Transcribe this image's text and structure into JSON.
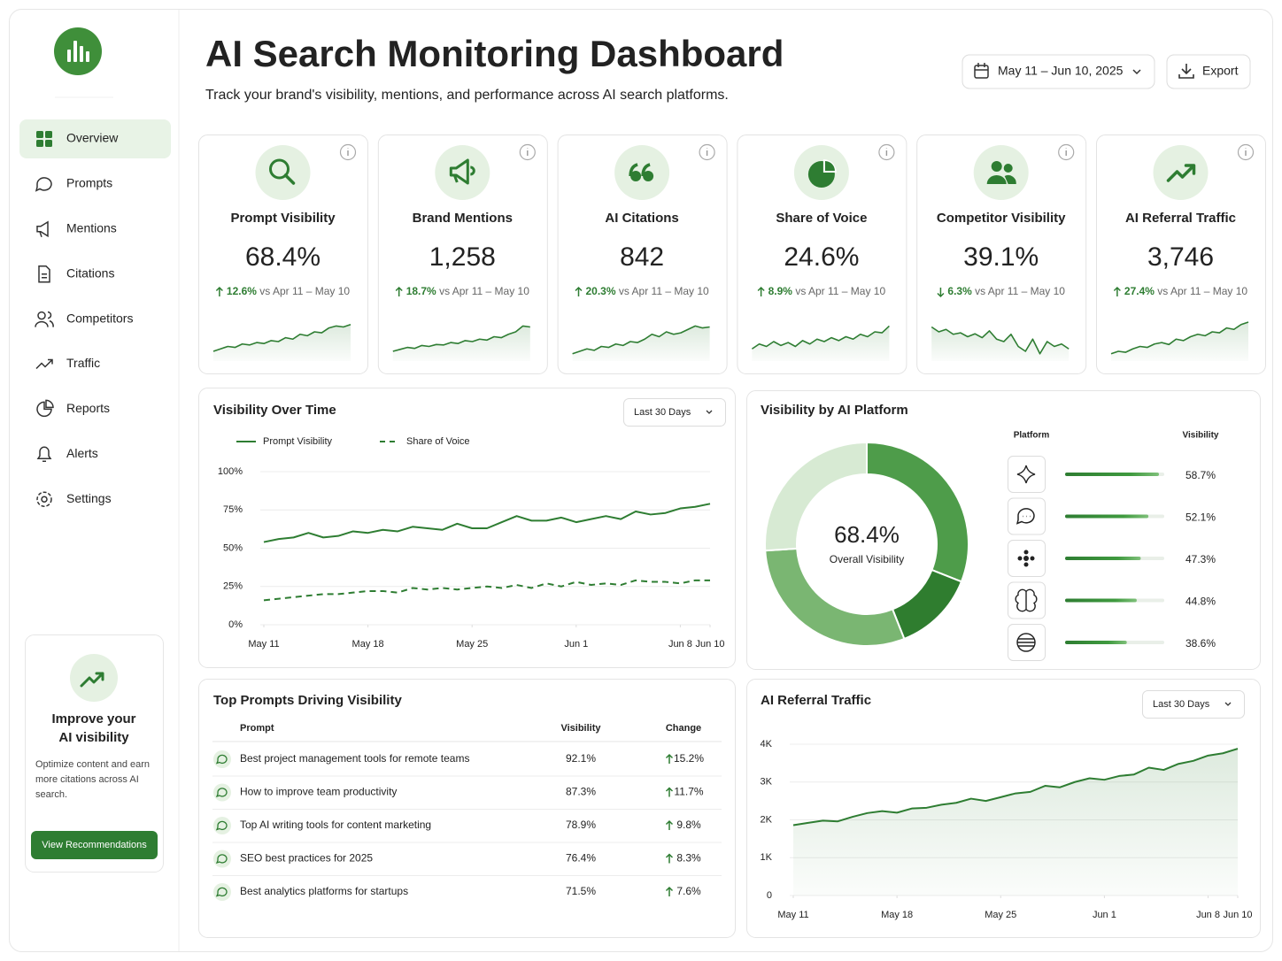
{
  "sidebar": {
    "nav": [
      "Overview",
      "Prompts",
      "Mentions",
      "Citations",
      "Competitors",
      "Traffic",
      "Reports",
      "Alerts",
      "Settings"
    ],
    "active": 0,
    "promo": {
      "title": "Improve your AI visibility",
      "text": "Optimize content and earn more citations across AI search.",
      "button": "View Recommendations"
    }
  },
  "header": {
    "title": "AI Search Monitoring Dashboard",
    "subtitle": "Track your brand's visibility, mentions, and performance across AI search platforms.",
    "date_range": "May 11 – Jun 10, 2025",
    "export": "Export"
  },
  "kpis": [
    {
      "label": "Prompt Visibility",
      "value": "68.4%",
      "change": "12.6%",
      "direction": "up",
      "comparison": "vs Apr 11 – May 10",
      "ylim": [
        0,
        100
      ],
      "sparkline": [
        20,
        25,
        30,
        28,
        35,
        33,
        38,
        36,
        42,
        40,
        48,
        45,
        55,
        52,
        60,
        58,
        68,
        72,
        70,
        75
      ]
    },
    {
      "label": "Brand Mentions",
      "value": "1,258",
      "change": "18.7%",
      "direction": "up",
      "comparison": "vs Apr 11 – May 10",
      "ylim": [
        0,
        100
      ],
      "sparkline": [
        20,
        24,
        28,
        26,
        32,
        30,
        34,
        33,
        38,
        36,
        42,
        40,
        45,
        43,
        50,
        48,
        55,
        60,
        72,
        70
      ]
    },
    {
      "label": "AI Citations",
      "value": "842",
      "change": "20.3%",
      "direction": "up",
      "comparison": "vs Apr 11 – May 10",
      "ylim": [
        0,
        100
      ],
      "sparkline": [
        15,
        20,
        25,
        22,
        30,
        28,
        35,
        32,
        40,
        38,
        45,
        55,
        50,
        60,
        55,
        58,
        65,
        72,
        68,
        70
      ]
    },
    {
      "label": "Share of Voice",
      "value": "24.6%",
      "change": "8.9%",
      "direction": "up",
      "comparison": "vs Apr 11 – May 10",
      "ylim": [
        0,
        100
      ],
      "sparkline": [
        25,
        35,
        30,
        40,
        32,
        38,
        30,
        42,
        35,
        45,
        40,
        48,
        42,
        50,
        45,
        55,
        50,
        60,
        58,
        72
      ]
    },
    {
      "label": "Competitor Visibility",
      "value": "39.1%",
      "change": "6.3%",
      "direction": "down",
      "comparison": "vs Apr 11 – May 10",
      "ylim": [
        0,
        100
      ],
      "sparkline": [
        70,
        60,
        65,
        55,
        58,
        50,
        56,
        48,
        62,
        45,
        40,
        55,
        30,
        20,
        45,
        15,
        40,
        30,
        35,
        25
      ]
    },
    {
      "label": "AI Referral Traffic",
      "value": "3,746",
      "change": "27.4%",
      "direction": "up",
      "comparison": "vs Apr 11 – May 10",
      "ylim": [
        0,
        100
      ],
      "sparkline": [
        15,
        20,
        18,
        25,
        30,
        28,
        35,
        38,
        34,
        45,
        42,
        50,
        55,
        52,
        60,
        58,
        68,
        65,
        75,
        80
      ]
    }
  ],
  "visibility_over_time": {
    "type": "line",
    "title": "Visibility Over Time",
    "range": "Last 30 Days",
    "series": [
      {
        "name": "Prompt Visibility",
        "color": "#2e7d32",
        "dash": false,
        "values": [
          54,
          56,
          57,
          60,
          57,
          58,
          61,
          60,
          62,
          61,
          64,
          63,
          62,
          66,
          63,
          63,
          67,
          71,
          68,
          68,
          70,
          67,
          69,
          71,
          69,
          74,
          72,
          73,
          76,
          77,
          79
        ]
      },
      {
        "name": "Share of Voice",
        "color": "#2e7d32",
        "dash": true,
        "values": [
          16,
          17,
          18,
          19,
          20,
          20,
          21,
          22,
          22,
          21,
          24,
          23,
          24,
          23,
          24,
          25,
          24,
          26,
          24,
          27,
          25,
          28,
          26,
          27,
          26,
          29,
          28,
          28,
          27,
          29,
          29
        ]
      }
    ],
    "ylim": [
      0,
      100
    ],
    "yticks": [
      {
        "value": 0,
        "label": "0%"
      },
      {
        "value": 25,
        "label": "25%"
      },
      {
        "value": 50,
        "label": "50%"
      },
      {
        "value": 75,
        "label": "75%"
      },
      {
        "value": 100,
        "label": "100%"
      }
    ],
    "xlim": [
      0,
      30
    ],
    "xticks": [
      {
        "value": 0,
        "label": "May 11"
      },
      {
        "value": 7,
        "label": "May 18"
      },
      {
        "value": 14,
        "label": "May 25"
      },
      {
        "value": 21,
        "label": "Jun 1"
      },
      {
        "value": 28,
        "label": "Jun 8"
      },
      {
        "value": 30,
        "label": "Jun 10"
      }
    ],
    "grid": true
  },
  "platforms": {
    "title": "Visibility by AI Platform",
    "donut": {
      "type": "pie",
      "center_value": "68.4%",
      "center_label": "Overall Visibility",
      "values": [
        31,
        13,
        30,
        26
      ],
      "colors": [
        "#4e9c4a",
        "#2f7d2f",
        "#7ab672",
        "#d7ead3"
      ]
    },
    "table": {
      "headers": [
        "Platform",
        "Visibility"
      ],
      "values": [
        58.7,
        52.1,
        47.3,
        44.8,
        38.6
      ],
      "value_labels": [
        "58.7%",
        "52.1%",
        "47.3%",
        "44.8%",
        "38.6%"
      ],
      "xlim": [
        0,
        62
      ],
      "color": "#2e7d32"
    }
  },
  "top_prompts": {
    "title": "Top Prompts Driving Visibility",
    "headers": [
      "Prompt",
      "Visibility",
      "Change"
    ],
    "rows": [
      [
        "Best project management tools for remote teams",
        "92.1%",
        "15.2%"
      ],
      [
        "How to improve team productivity",
        "87.3%",
        "11.7%"
      ],
      [
        "Top AI writing tools for content marketing",
        "78.9%",
        "9.8%"
      ],
      [
        "SEO best practices for 2025",
        "76.4%",
        "8.3%"
      ],
      [
        "Best analytics platforms for startups",
        "71.5%",
        "7.6%"
      ]
    ]
  },
  "referral_traffic": {
    "type": "line",
    "title": "AI Referral Traffic",
    "range": "Last 30 Days",
    "color": "#2e7d32",
    "area": true,
    "values": [
      1860,
      1920,
      1980,
      1960,
      2080,
      2180,
      2230,
      2190,
      2300,
      2320,
      2400,
      2450,
      2560,
      2500,
      2600,
      2700,
      2740,
      2900,
      2860,
      3000,
      3100,
      3060,
      3160,
      3200,
      3380,
      3320,
      3480,
      3560,
      3700,
      3760,
      3880
    ],
    "ylim": [
      0,
      4000
    ],
    "yticks": [
      0,
      {
        "value": 1000,
        "label": "1K"
      },
      {
        "value": 2000,
        "label": "2K"
      },
      {
        "value": 3000,
        "label": "3K"
      },
      {
        "value": 4000,
        "label": "4K"
      }
    ],
    "xlim": [
      0,
      30
    ],
    "xticks": [
      {
        "value": 0,
        "label": "May 11"
      },
      {
        "value": 7,
        "label": "May 18"
      },
      {
        "value": 14,
        "label": "May 25"
      },
      {
        "value": 21,
        "label": "Jun 1"
      },
      {
        "value": 28,
        "label": "Jun 8"
      },
      {
        "value": 30,
        "label": "Jun 10"
      }
    ],
    "grid": true
  }
}
